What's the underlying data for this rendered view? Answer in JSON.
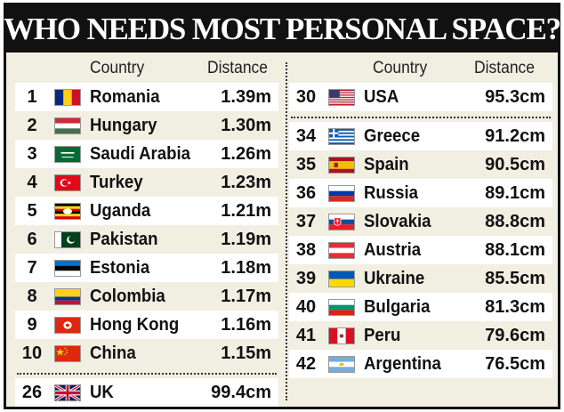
{
  "title": "WHO NEEDS MOST PERSONAL SPACE?",
  "headers": {
    "country": "Country",
    "distance": "Distance"
  },
  "left_rows": [
    {
      "rank": "1",
      "country": "Romania",
      "distance": "1.39m",
      "flag": "romania-flag-icon"
    },
    {
      "rank": "2",
      "country": "Hungary",
      "distance": "1.30m",
      "flag": "hungary-flag-icon"
    },
    {
      "rank": "3",
      "country": "Saudi Arabia",
      "distance": "1.26m",
      "flag": "saudi-arabia-flag-icon"
    },
    {
      "rank": "4",
      "country": "Turkey",
      "distance": "1.23m",
      "flag": "turkey-flag-icon"
    },
    {
      "rank": "5",
      "country": "Uganda",
      "distance": "1.21m",
      "flag": "uganda-flag-icon"
    },
    {
      "rank": "6",
      "country": "Pakistan",
      "distance": "1.19m",
      "flag": "pakistan-flag-icon"
    },
    {
      "rank": "7",
      "country": "Estonia",
      "distance": "1.18m",
      "flag": "estonia-flag-icon"
    },
    {
      "rank": "8",
      "country": "Colombia",
      "distance": "1.17m",
      "flag": "colombia-flag-icon"
    },
    {
      "rank": "9",
      "country": "Hong Kong",
      "distance": "1.16m",
      "flag": "hong-kong-flag-icon"
    },
    {
      "rank": "10",
      "country": "China",
      "distance": "1.15m",
      "flag": "china-flag-icon"
    }
  ],
  "left_extra": {
    "rank": "26",
    "country": "UK",
    "distance": "99.4cm",
    "flag": "uk-flag-icon"
  },
  "right_top": {
    "rank": "30",
    "country": "USA",
    "distance": "95.3cm",
    "flag": "usa-flag-icon"
  },
  "right_rows": [
    {
      "rank": "34",
      "country": "Greece",
      "distance": "91.2cm",
      "flag": "greece-flag-icon"
    },
    {
      "rank": "35",
      "country": "Spain",
      "distance": "90.5cm",
      "flag": "spain-flag-icon"
    },
    {
      "rank": "36",
      "country": "Russia",
      "distance": "89.1cm",
      "flag": "russia-flag-icon"
    },
    {
      "rank": "37",
      "country": "Slovakia",
      "distance": "88.8cm",
      "flag": "slovakia-flag-icon"
    },
    {
      "rank": "38",
      "country": "Austria",
      "distance": "88.1cm",
      "flag": "austria-flag-icon"
    },
    {
      "rank": "39",
      "country": "Ukraine",
      "distance": "85.5cm",
      "flag": "ukraine-flag-icon"
    },
    {
      "rank": "40",
      "country": "Bulgaria",
      "distance": "81.3cm",
      "flag": "bulgaria-flag-icon"
    },
    {
      "rank": "41",
      "country": "Peru",
      "distance": "79.6cm",
      "flag": "peru-flag-icon"
    },
    {
      "rank": "42",
      "country": "Argentina",
      "distance": "76.5cm",
      "flag": "argentina-flag-icon"
    }
  ],
  "colors": {
    "background": "#f1eee2",
    "title_bar": "#111111",
    "row_light": "#ffffff"
  }
}
